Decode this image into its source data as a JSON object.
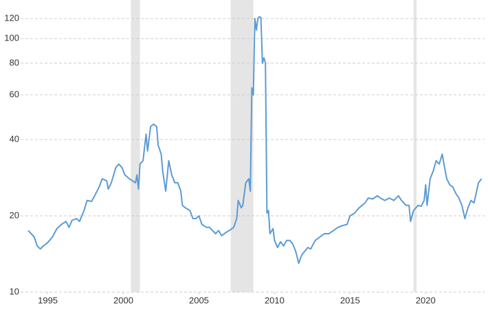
{
  "chart_data": {
    "type": "line",
    "log_y": true,
    "grid": true,
    "xlim": [
      1993.2,
      2023.9
    ],
    "xticks": [
      1995,
      2000,
      2005,
      2010,
      2015,
      2020
    ],
    "ylim": [
      10,
      142
    ],
    "yticks": [
      10,
      20,
      40,
      60,
      80,
      100,
      120
    ],
    "shade_color": "#e5e5e5",
    "shaded_regions": [
      [
        2000.5,
        2001.1
      ],
      [
        2007.1,
        2008.6
      ],
      [
        2019.2,
        2019.4
      ]
    ],
    "x": [
      1993.7,
      1993.9,
      1994.1,
      1994.3,
      1994.5,
      1994.7,
      1995.0,
      1995.3,
      1995.6,
      1995.9,
      1996.2,
      1996.4,
      1996.6,
      1996.9,
      1997.1,
      1997.4,
      1997.6,
      1997.9,
      1998.1,
      1998.4,
      1998.6,
      1998.9,
      1999.0,
      1999.2,
      1999.5,
      1999.7,
      1999.9,
      2000.1,
      2000.4,
      2000.6,
      2000.8,
      2000.9,
      2001.0,
      2001.1,
      2001.3,
      2001.5,
      2001.6,
      2001.8,
      2002.0,
      2002.2,
      2002.3,
      2002.5,
      2002.6,
      2002.8,
      2003.0,
      2003.2,
      2003.4,
      2003.6,
      2003.8,
      2003.9,
      2004.1,
      2004.4,
      2004.6,
      2004.8,
      2005.0,
      2005.2,
      2005.5,
      2005.7,
      2005.9,
      2006.1,
      2006.3,
      2006.5,
      2006.8,
      2007.0,
      2007.3,
      2007.5,
      2007.6,
      2007.8,
      2007.9,
      2008.1,
      2008.3,
      2008.4,
      2008.5,
      2008.6,
      2008.7,
      2008.8,
      2008.9,
      2009.0,
      2009.1,
      2009.2,
      2009.3,
      2009.4,
      2009.5,
      2009.6,
      2009.7,
      2009.9,
      2010.0,
      2010.2,
      2010.4,
      2010.6,
      2010.8,
      2011.0,
      2011.2,
      2011.4,
      2011.6,
      2011.8,
      2012.0,
      2012.2,
      2012.4,
      2012.7,
      2013.0,
      2013.3,
      2013.6,
      2013.9,
      2014.2,
      2014.5,
      2014.8,
      2015.0,
      2015.3,
      2015.6,
      2015.8,
      2016.0,
      2016.2,
      2016.5,
      2016.8,
      2017.0,
      2017.3,
      2017.6,
      2017.9,
      2018.2,
      2018.4,
      2018.7,
      2018.9,
      2019.0,
      2019.2,
      2019.5,
      2019.7,
      2019.9,
      2020.0,
      2020.1,
      2020.3,
      2020.5,
      2020.7,
      2020.9,
      2021.1,
      2021.3,
      2021.4,
      2021.6,
      2021.8,
      2022.0,
      2022.2,
      2022.4,
      2022.6,
      2022.8,
      2023.0,
      2023.2,
      2023.5,
      2023.7
    ],
    "series": [
      {
        "color": "#5b9bd5",
        "values": [
          17.5,
          17,
          16.5,
          15.2,
          14.8,
          15.2,
          15.7,
          16.5,
          17.8,
          18.5,
          19,
          18,
          19.2,
          19.5,
          19,
          21,
          23,
          22.8,
          24,
          26,
          28,
          27.5,
          25.5,
          27,
          31,
          32,
          31,
          29,
          28,
          27.5,
          27,
          29,
          25.5,
          32,
          33,
          42,
          36,
          45,
          46,
          45,
          38,
          35,
          30,
          25,
          33,
          29,
          27,
          27,
          25,
          22,
          21.5,
          21,
          19.5,
          19.5,
          20,
          18.5,
          18,
          18,
          17.5,
          17,
          17.5,
          16.7,
          17.2,
          17.5,
          18,
          19.5,
          23,
          21.5,
          22,
          27,
          28,
          25,
          64,
          60,
          120,
          108,
          120,
          122,
          121,
          80,
          84,
          80,
          20.5,
          21,
          17,
          17.8,
          16,
          15,
          15.8,
          15.2,
          16,
          16,
          15.5,
          14.5,
          13,
          14,
          14.5,
          15,
          14.8,
          16,
          16.5,
          17,
          17,
          17.5,
          18,
          18.3,
          18.5,
          20,
          20.5,
          21.5,
          22,
          22.5,
          23.5,
          23.3,
          24,
          23.5,
          23,
          23.5,
          23,
          24,
          23,
          22,
          22,
          19,
          21,
          22,
          21.8,
          23,
          26.5,
          22,
          28,
          30,
          33,
          32,
          35,
          30,
          28,
          26.5,
          26,
          24.5,
          23.5,
          22,
          19.5,
          21.5,
          23,
          22.5,
          27,
          28
        ]
      }
    ]
  }
}
